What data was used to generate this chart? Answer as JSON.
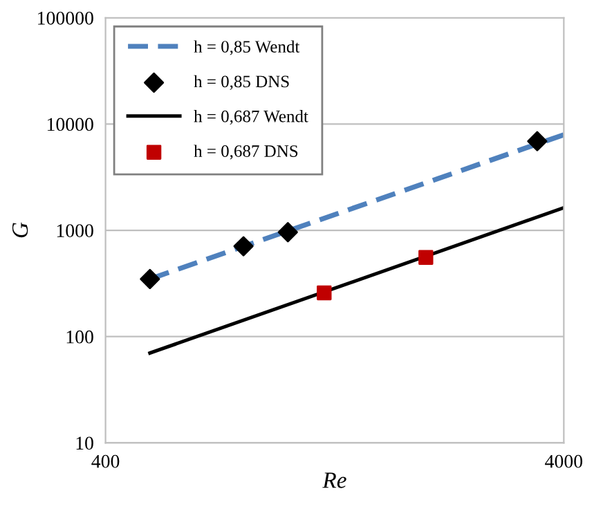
{
  "chart_data": {
    "type": "line",
    "xlabel": "Re",
    "ylabel": "G",
    "log": "xy",
    "xlim": [
      400,
      4000
    ],
    "xticks": [
      400,
      4000
    ],
    "ylim": [
      10,
      100000
    ],
    "yticks": [
      10,
      100,
      1000,
      10000,
      100000
    ],
    "grid": "y",
    "legend": "top left",
    "series": [
      {
        "name": "h = 0,85 Wendt",
        "line_style": "dashed",
        "marker": "none",
        "color": "#4f81bd",
        "x": [
          500,
          4000
        ],
        "values": [
          348,
          7940
        ]
      },
      {
        "name": "h = 0,85 DNS",
        "type": "scatter",
        "marker": "diamond",
        "color": "#000000",
        "x": [
          500,
          800,
          1000,
          3500
        ],
        "values": [
          348,
          708,
          960,
          6900
        ]
      },
      {
        "name": "h = 0,687 Wendt",
        "line_style": "solid",
        "marker": "none",
        "color": "#000000",
        "x": [
          500,
          4000
        ],
        "values": [
          70,
          1630
        ]
      },
      {
        "name": "h = 0,687 DNS",
        "type": "scatter",
        "marker": "square",
        "color": "#c00000",
        "x": [
          1200,
          2000
        ],
        "values": [
          258,
          556
        ]
      }
    ]
  }
}
